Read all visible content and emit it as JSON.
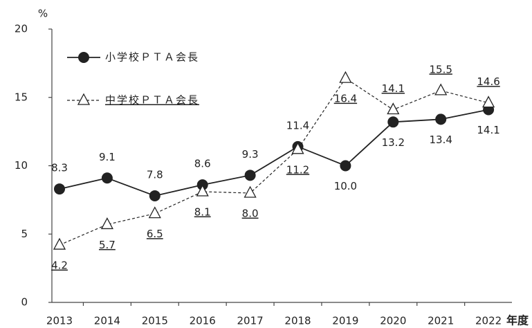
{
  "chart_data": {
    "type": "line",
    "y_label": "%",
    "x_label": "年度",
    "categories": [
      "2013",
      "2014",
      "2015",
      "2016",
      "2017",
      "2018",
      "2019",
      "2020",
      "2021",
      "2022"
    ],
    "series": [
      {
        "name": "小学校ＰＴＡ会長",
        "color": "#222222",
        "marker": "circle",
        "dash": false,
        "values": [
          8.3,
          9.1,
          7.8,
          8.6,
          9.3,
          11.4,
          10.0,
          13.2,
          13.4,
          14.1
        ],
        "value_labels": [
          "8.3",
          "9.1",
          "7.8",
          "8.6",
          "9.3",
          "11.4",
          "10.0",
          "13.2",
          "13.4",
          "14.1"
        ]
      },
      {
        "name": "中学校ＰＴＡ会長",
        "color": "#222222",
        "marker": "triangle",
        "dash": true,
        "values": [
          4.2,
          5.7,
          6.5,
          8.1,
          8.0,
          11.2,
          16.4,
          14.1,
          15.5,
          14.6
        ],
        "value_labels": [
          "4.2",
          "5.7",
          "6.5",
          "8.1",
          "8.0",
          "11.2",
          "16.4",
          "14.1",
          "15.5",
          "14.6"
        ]
      }
    ],
    "ylim": [
      0,
      20
    ],
    "yticks": [
      0,
      5,
      10,
      15,
      20
    ]
  }
}
